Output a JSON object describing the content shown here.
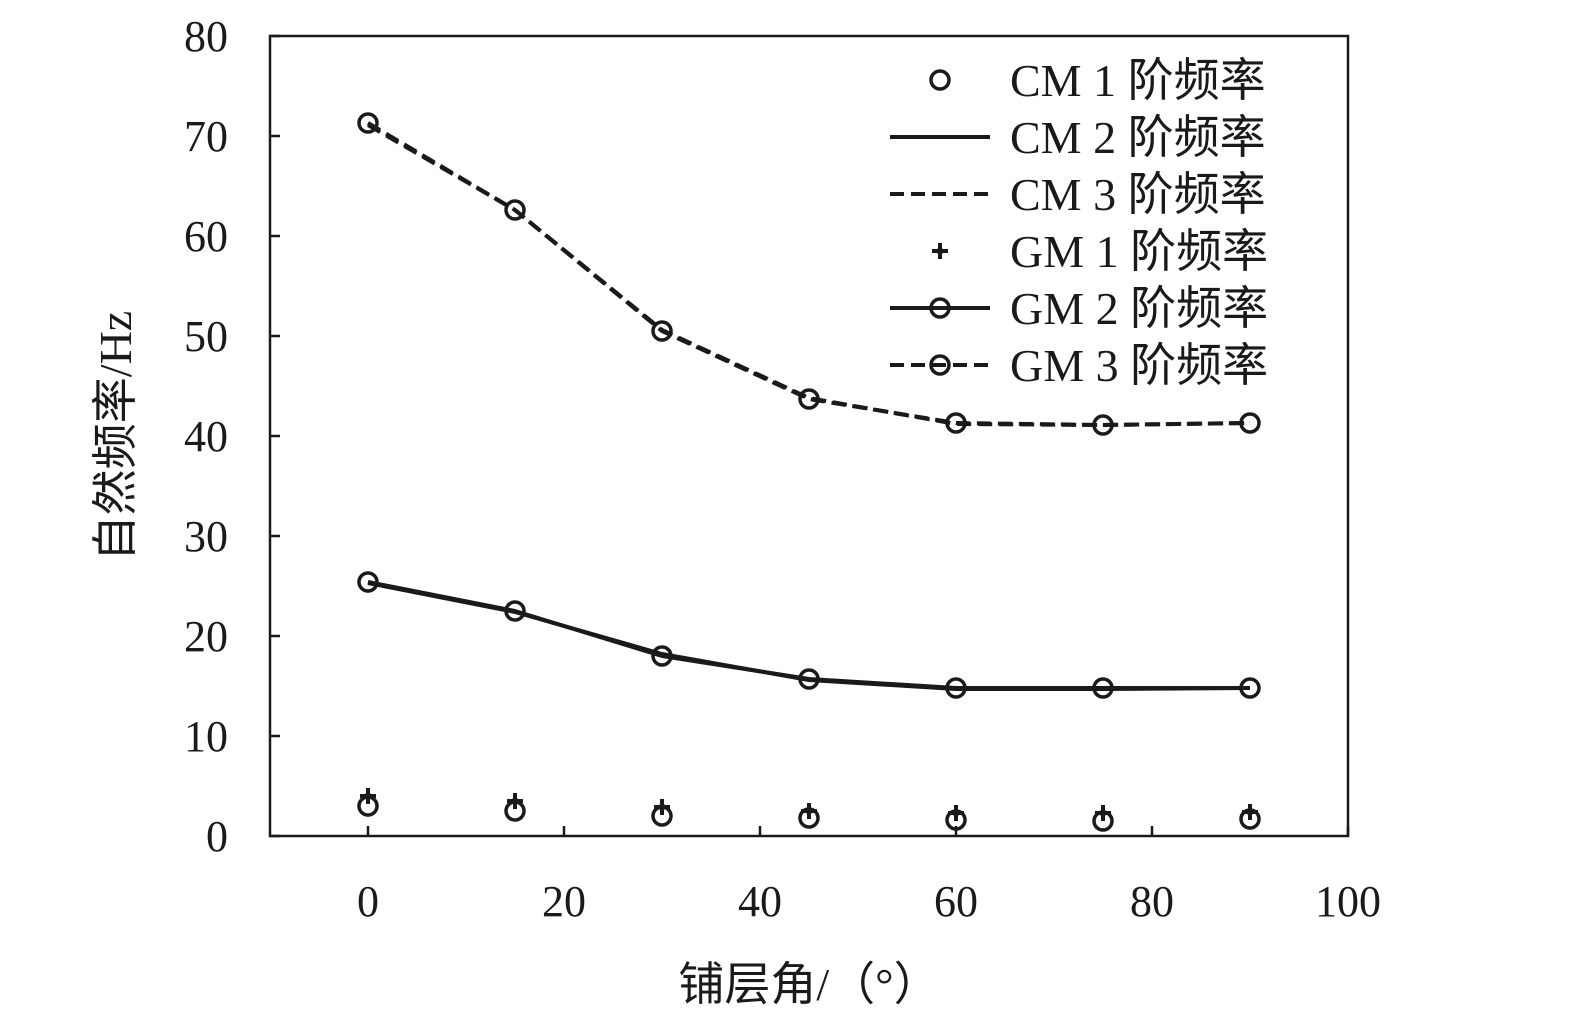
{
  "chart_data": {
    "type": "line",
    "xlabel": "铺层角/（°）",
    "ylabel": "自然频率/Hz",
    "xlim": [
      -10,
      100
    ],
    "ylim": [
      0,
      80
    ],
    "xticks": [
      0,
      20,
      40,
      60,
      80,
      100
    ],
    "yticks": [
      0,
      10,
      20,
      30,
      40,
      50,
      60,
      70,
      80
    ],
    "grid": false,
    "legend_position": "top-right",
    "x": [
      0,
      15,
      30,
      45,
      60,
      75,
      90
    ],
    "series": [
      {
        "name": "CM 1 阶频率",
        "style": "circle-marker",
        "values": [
          3.0,
          2.5,
          2.0,
          1.8,
          1.6,
          1.5,
          1.7
        ]
      },
      {
        "name": "CM 2 阶频率",
        "style": "solid-line",
        "values": [
          25.3,
          22.4,
          18.2,
          15.6,
          14.7,
          14.7,
          14.8
        ]
      },
      {
        "name": "CM 3 阶频率",
        "style": "dashed-line",
        "values": [
          71.1,
          62.6,
          50.6,
          43.8,
          41.2,
          41.1,
          41.3
        ]
      },
      {
        "name": "GM 1 阶频率",
        "style": "plus-marker",
        "values": [
          4.0,
          3.5,
          2.9,
          2.5,
          2.3,
          2.3,
          2.4
        ]
      },
      {
        "name": "GM 2 阶频率",
        "style": "solid-line-circle",
        "values": [
          25.4,
          22.5,
          18.0,
          15.7,
          14.8,
          14.8,
          14.8
        ]
      },
      {
        "name": "GM 3 阶频率",
        "style": "dashed-line-circle",
        "values": [
          71.3,
          62.6,
          50.5,
          43.7,
          41.3,
          41.1,
          41.3
        ]
      }
    ]
  }
}
